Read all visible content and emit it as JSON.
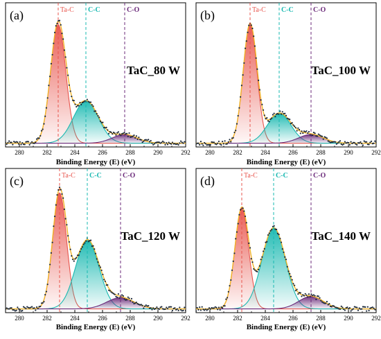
{
  "chart_data": [
    {
      "type": "scatter",
      "panel_label": "(a)",
      "sample_label": "TaC_80 W",
      "xlabel": "Binding Energy (E) (eV)",
      "xlim": [
        279,
        292
      ],
      "xticks": [
        280,
        282,
        284,
        286,
        288,
        290,
        292
      ],
      "baseline": 0.03,
      "peaks": [
        {
          "name": "Ta-C",
          "label_text": "Ta-C",
          "center": 282.8,
          "height": 0.95,
          "sigma": 0.55,
          "color": "#e8554d",
          "ref_line": 282.8
        },
        {
          "name": "C-C",
          "label_text": "C-C",
          "center": 284.8,
          "height": 0.34,
          "sigma": 0.9,
          "color": "#17b8b0",
          "ref_line": 284.8
        },
        {
          "name": "C-O",
          "label_text": "C-O",
          "center": 287.6,
          "height": 0.07,
          "sigma": 0.9,
          "color": "#6b2a7a",
          "ref_line": 287.6
        }
      ]
    },
    {
      "type": "scatter",
      "panel_label": "(b)",
      "sample_label": "TaC_100 W",
      "xlabel": "Binding Energy (E) (eV)",
      "xlim": [
        279,
        292
      ],
      "xticks": [
        280,
        282,
        284,
        286,
        288,
        290,
        292
      ],
      "baseline": 0.03,
      "peaks": [
        {
          "name": "Ta-C",
          "label_text": "Ta-C",
          "center": 282.9,
          "height": 0.95,
          "sigma": 0.5,
          "color": "#e8554d",
          "ref_line": 282.9
        },
        {
          "name": "C-C",
          "label_text": "C-C",
          "center": 285.0,
          "height": 0.24,
          "sigma": 0.85,
          "color": "#17b8b0",
          "ref_line": 285.0
        },
        {
          "name": "C-O",
          "label_text": "C-O",
          "center": 287.3,
          "height": 0.07,
          "sigma": 0.9,
          "color": "#6b2a7a",
          "ref_line": 287.3
        }
      ]
    },
    {
      "type": "scatter",
      "panel_label": "(c)",
      "sample_label": "TaC_120 W",
      "xlabel": "Binding Energy (E) (eV)",
      "xlim": [
        279,
        292
      ],
      "xticks": [
        280,
        282,
        284,
        286,
        288,
        290,
        292
      ],
      "baseline": 0.03,
      "peaks": [
        {
          "name": "Ta-C",
          "label_text": "Ta-C",
          "center": 282.9,
          "height": 0.93,
          "sigma": 0.5,
          "color": "#e8554d",
          "ref_line": 282.9
        },
        {
          "name": "C-C",
          "label_text": "C-C",
          "center": 284.9,
          "height": 0.55,
          "sigma": 0.85,
          "color": "#17b8b0",
          "ref_line": 284.9
        },
        {
          "name": "C-O",
          "label_text": "C-O",
          "center": 287.3,
          "height": 0.09,
          "sigma": 1.0,
          "color": "#6b2a7a",
          "ref_line": 287.3
        }
      ]
    },
    {
      "type": "scatter",
      "panel_label": "(d)",
      "sample_label": "TaC_140 W",
      "xlabel": "Binding Energy (E) (eV)",
      "xlim": [
        279,
        292
      ],
      "xticks": [
        280,
        282,
        284,
        286,
        288,
        290,
        292
      ],
      "baseline": 0.03,
      "peaks": [
        {
          "name": "Ta-C",
          "label_text": "Ta-C",
          "center": 282.3,
          "height": 0.8,
          "sigma": 0.5,
          "color": "#e8554d",
          "ref_line": 282.3
        },
        {
          "name": "C-C",
          "label_text": "C-C",
          "center": 284.6,
          "height": 0.65,
          "sigma": 0.85,
          "color": "#17b8b0",
          "ref_line": 284.6
        },
        {
          "name": "C-O",
          "label_text": "C-O",
          "center": 287.3,
          "height": 0.1,
          "sigma": 0.9,
          "color": "#6b2a7a",
          "ref_line": 287.3
        }
      ]
    }
  ]
}
